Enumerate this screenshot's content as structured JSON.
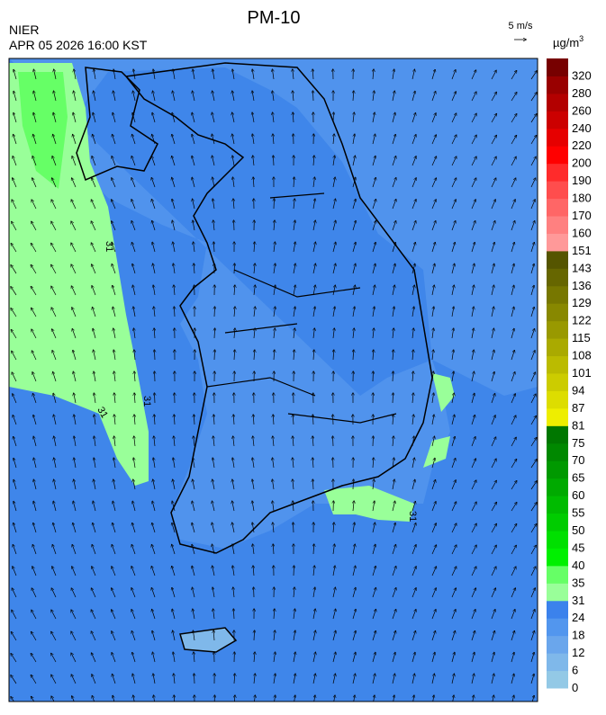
{
  "header": {
    "title": "PM-10",
    "agency": "NIER",
    "datetime": "APR 05 2026 16:00 KST",
    "wind_scale": "5 m/s",
    "unit_base": "µg/m",
    "unit_sup": "3"
  },
  "colorbar": {
    "labels": [
      0,
      6,
      12,
      18,
      24,
      31,
      35,
      40,
      45,
      50,
      55,
      60,
      65,
      70,
      75,
      81,
      87,
      94,
      101,
      108,
      115,
      122,
      129,
      136,
      143,
      151,
      160,
      170,
      180,
      190,
      200,
      220,
      240,
      260,
      280,
      320
    ],
    "colors": [
      "#93c9e6",
      "#7fb8ea",
      "#6aa6ec",
      "#5296ee",
      "#3b82ec",
      "#99ff99",
      "#66ff66",
      "#00f000",
      "#00e000",
      "#00cc00",
      "#00bb00",
      "#00aa00",
      "#009900",
      "#008800",
      "#007700",
      "#eeee00",
      "#dddd00",
      "#cccc00",
      "#bbbb00",
      "#aaaa00",
      "#999900",
      "#888800",
      "#777700",
      "#666600",
      "#555500",
      "#ff9999",
      "#ff8080",
      "#ff6666",
      "#ff4d4d",
      "#ff2b2b",
      "#ff0000",
      "#e60000",
      "#cc0000",
      "#b30000",
      "#990000",
      "#770000"
    ]
  },
  "map": {
    "contour_labels": [
      "31",
      "31",
      "31",
      "31"
    ]
  }
}
